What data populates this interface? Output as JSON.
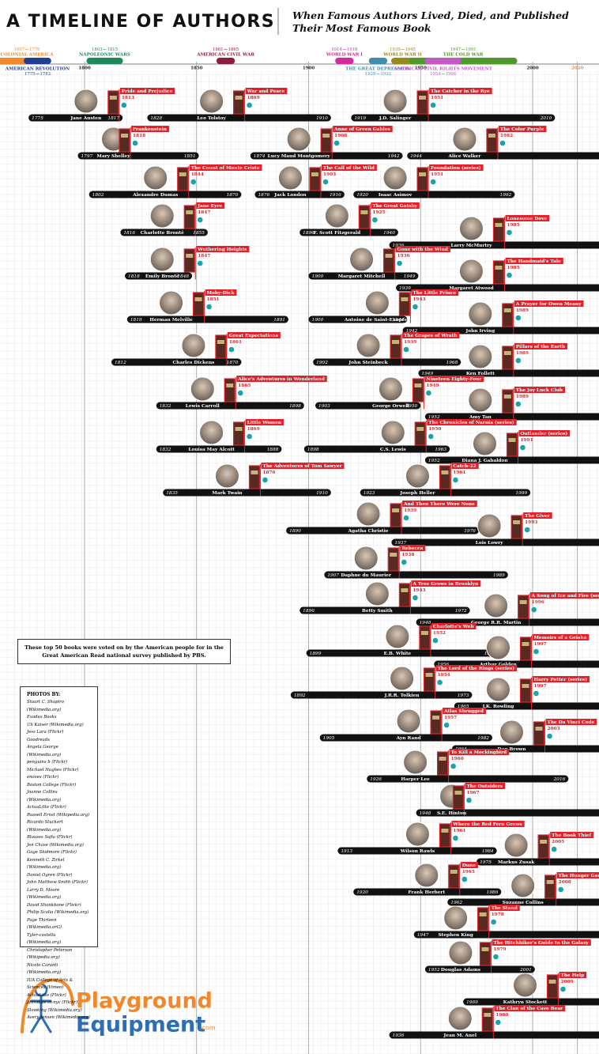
{
  "header": {
    "title": "A TIMELINE OF AUTHORS",
    "subtitle": "When Famous Authors Lived, Died, and Published Their Most Famous Book"
  },
  "eras": [
    {
      "name": "COLONIAL AMERICA",
      "start": 1607,
      "end": 1776,
      "color": "#f0892d"
    },
    {
      "name": "AMERICAN REVOLUTION",
      "start": 1775,
      "end": 1783,
      "color": "#1f3f8f"
    },
    {
      "name": "NAPOLEONIC WARS",
      "start": 1803,
      "end": 1815,
      "color": "#1e8a5a"
    },
    {
      "name": "AMERICAN CIVIL WAR",
      "start": 1861,
      "end": 1865,
      "color": "#8c1d3c"
    },
    {
      "name": "WORLD WAR I",
      "start": 1914,
      "end": 1918,
      "color": "#d42a9f"
    },
    {
      "name": "THE GREAT DEPRESSION",
      "start": 1929,
      "end": 1933,
      "color": "#3d8fb0"
    },
    {
      "name": "WORLD WAR II",
      "start": 1939,
      "end": 1945,
      "color": "#9a8a1a"
    },
    {
      "name": "THE COLD WAR",
      "start": 1947,
      "end": 1991,
      "color": "#4d9a2a"
    },
    {
      "name": "AMERICAN CIVIL RIGHTS MOVEMENT",
      "start": 1954,
      "end": 1966,
      "color": "#c45ac8"
    }
  ],
  "axis": {
    "ticks": [
      1800,
      1850,
      1900,
      1950,
      2000,
      2020
    ]
  },
  "authors": [
    {
      "name": "Jane Austen",
      "born": 1775,
      "died": 1817,
      "book": "Pride and Prejudice",
      "year": 1813
    },
    {
      "name": "Leo Tolstoy",
      "born": 1828,
      "died": 1910,
      "book": "War and Peace",
      "year": 1869
    },
    {
      "name": "J.D. Salinger",
      "born": 1919,
      "died": 2010,
      "book": "The Catcher in the Rye",
      "year": 1951
    },
    {
      "name": "Mary Shelley",
      "born": 1797,
      "died": 1851,
      "book": "Frankenstein",
      "year": 1818
    },
    {
      "name": "Lucy Maud Montgomery",
      "born": 1874,
      "died": 1942,
      "book": "Anne of Green Gables",
      "year": 1908
    },
    {
      "name": "Alice Walker",
      "born": 1944,
      "book": "The Color Purple",
      "year": 1982
    },
    {
      "name": "Alexandre Dumas",
      "born": 1802,
      "died": 1870,
      "book": "The Count of Monte Cristo",
      "year": 1844
    },
    {
      "name": "Jack London",
      "born": 1876,
      "died": 1916,
      "book": "The Call of the Wild",
      "year": 1903
    },
    {
      "name": "Isaac Asimov",
      "born": 1920,
      "died": 1992,
      "book": "Foundation (series)",
      "year": 1951
    },
    {
      "name": "Charlotte Brontë",
      "born": 1816,
      "died": 1855,
      "book": "Jane Eyre",
      "year": 1847
    },
    {
      "name": "F. Scott Fitzgerald",
      "born": 1896,
      "died": 1940,
      "book": "The Great Gatsby",
      "year": 1925
    },
    {
      "name": "Larry McMurtry",
      "born": 1936,
      "book": "Lonesome Dove",
      "year": 1985
    },
    {
      "name": "Emily Brontë",
      "born": 1818,
      "died": 1848,
      "book": "Wuthering Heights",
      "year": 1847
    },
    {
      "name": "Margaret Mitchell",
      "born": 1900,
      "died": 1949,
      "book": "Gone with the Wind",
      "year": 1936
    },
    {
      "name": "Margaret Atwood",
      "born": 1939,
      "book": "The Handmaid's Tale",
      "year": 1985
    },
    {
      "name": "Herman Melville",
      "born": 1819,
      "died": 1891,
      "book": "Moby-Dick",
      "year": 1851
    },
    {
      "name": "Antoine de Saint-Exupéry",
      "born": 1900,
      "died": 1944,
      "book": "The Little Prince",
      "year": 1943
    },
    {
      "name": "John Irving",
      "born": 1942,
      "book": "A Prayer for Owen Meany",
      "year": 1989
    },
    {
      "name": "Charles Dickens",
      "born": 1812,
      "died": 1870,
      "book": "Great Expectations",
      "year": 1861
    },
    {
      "name": "John Steinbeck",
      "born": 1902,
      "died": 1968,
      "book": "The Grapes of Wrath",
      "year": 1939
    },
    {
      "name": "Ken Follett",
      "born": 1949,
      "book": "Pillars of the Earth",
      "year": 1989
    },
    {
      "name": "Lewis Carroll",
      "born": 1832,
      "died": 1898,
      "book": "Alice's Adventures in Wonderland",
      "year": 1865
    },
    {
      "name": "George Orwell",
      "born": 1903,
      "died": 1950,
      "book": "Nineteen Eighty-Four",
      "year": 1949
    },
    {
      "name": "Amy Tan",
      "born": 1952,
      "book": "The Joy Luck Club",
      "year": 1989
    },
    {
      "name": "Louisa May Alcott",
      "born": 1832,
      "died": 1888,
      "book": "Little Women",
      "year": 1869
    },
    {
      "name": "C.S. Lewis",
      "born": 1898,
      "died": 1963,
      "book": "The Chronicles of Narnia (series)",
      "year": 1950
    },
    {
      "name": "Diana J. Gabaldon",
      "born": 1952,
      "book": "Outlander (series)",
      "year": 1991
    },
    {
      "name": "Mark Twain",
      "born": 1835,
      "died": 1910,
      "book": "The Adventures of Tom Sawyer",
      "year": 1876
    },
    {
      "name": "Joseph Heller",
      "born": 1923,
      "died": 1999,
      "book": "Catch-22",
      "year": 1961
    },
    {
      "name": "Agatha Christie",
      "born": 1890,
      "died": 1976,
      "book": "And Then There Were None",
      "year": 1939
    },
    {
      "name": "Lois Lowry",
      "born": 1937,
      "book": "The Giver",
      "year": 1993
    },
    {
      "name": "Daphne du Maurier",
      "born": 1907,
      "died": 1989,
      "book": "Rebecca",
      "year": 1938
    },
    {
      "name": "Betty Smith",
      "born": 1896,
      "died": 1972,
      "book": "A Tree Grows in Brooklyn",
      "year": 1943
    },
    {
      "name": "George R.R. Martin",
      "born": 1948,
      "book": "A Song of Ice and Fire (series)",
      "year": 1996
    },
    {
      "name": "E.B. White",
      "born": 1899,
      "died": 1985,
      "book": "Charlotte's Web",
      "year": 1952
    },
    {
      "name": "Arthur Golden",
      "born": 1956,
      "book": "Memoirs of a Geisha",
      "year": 1997
    },
    {
      "name": "J.R.R. Tolkien",
      "born": 1892,
      "died": 1973,
      "book": "The Lord of the Rings (series)",
      "year": 1954
    },
    {
      "name": "J.K. Rowling",
      "born": 1965,
      "book": "Harry Potter (series)",
      "year": 1997
    },
    {
      "name": "Ayn Rand",
      "born": 1905,
      "died": 1982,
      "book": "Atlas Shrugged",
      "year": 1957
    },
    {
      "name": "Dan Brown",
      "born": 1964,
      "book": "The Da Vinci Code",
      "year": 2003
    },
    {
      "name": "Harper Lee",
      "born": 1926,
      "died": 2016,
      "book": "To Kill a Mockingbird",
      "year": 1960
    },
    {
      "name": "S.E. Hinton",
      "born": 1948,
      "book": "The Outsiders",
      "year": 1967
    },
    {
      "name": "Wilson Rawls",
      "born": 1913,
      "died": 1984,
      "book": "Where the Red Fern Grows",
      "year": 1961
    },
    {
      "name": "Markus Zusak",
      "born": 1975,
      "book": "The Book Thief",
      "year": 2005
    },
    {
      "name": "Frank Herbert",
      "born": 1920,
      "died": 1986,
      "book": "Dune",
      "year": 1965
    },
    {
      "name": "Suzanne Collins",
      "born": 1962,
      "book": "The Hunger Games",
      "year": 2008
    },
    {
      "name": "Stephen King",
      "born": 1947,
      "book": "The Stand",
      "year": 1978
    },
    {
      "name": "Douglas Adams",
      "born": 1952,
      "died": 2001,
      "book": "The Hitchhiker's Guide to the Galaxy",
      "year": 1979
    },
    {
      "name": "Kathryn Stockett",
      "born": 1969,
      "book": "The Help",
      "year": 2009
    },
    {
      "name": "Jean M. Auel",
      "born": 1936,
      "book": "The Clan of the Cave Bear",
      "year": 1980
    }
  ],
  "note": "These top 50 books were voted on by the American people for in the Great American Read national survey published by PBS.",
  "credits": {
    "title": "PHOTOS BY:",
    "items": [
      "Stuart C. Shapiro (Wikimedia.org)",
      "Exodus Books",
      "Uli Kaiser (Wikimedia.org)",
      "Jess Lara (Flickr)",
      "Goodreads",
      "Angela George (Wikimedia.org)",
      "penguins b (Flickr)",
      "Michael Hughes (Flickr)",
      "enoxes (Flickr)",
      "Boston College (Flickr)",
      "Joanne Collins (Wikimedia.org)",
      "ActuaLitte (Flickr)",
      "Russell Ernst (Wikipedia.org)",
      "Ricardo Stuckert (Wikimedia.org)",
      "Blouses Sofia (Flickr)",
      "Jen Chase (Wikimedia.org)",
      "Gage Skidmore (Flickr)",
      "Kenneth C. Zirkel (Wikimedia.org)",
      "Daniel Ogren (Flickr)",
      "John Matthew Smith (Flickr)",
      "Larry D. Moore (Wikimedia.org)",
      "David Shankbone (Flickr)",
      "Philip Scalia (Wikimedia.org)",
      "Page Thirteen (Wikimedia.orG)",
      "Tyler-castellu (Wikimedia.org)",
      "Christopher Peterson (Wikipedia.org)",
      "Nicolo Caranti (Wikimedia.org)",
      "IUA College of Arts & Sciences (Vimeo)",
      "ActuaLitte (Flickr)",
      "jdnrodite-in-nyc (Flickr)",
      "Slowking (Wikimedia.org)",
      "Avery Jensen (Wikimedia.org)"
    ]
  },
  "logo": {
    "line1": "Playground",
    "line2": "Equipment",
    "line3": ".com"
  }
}
